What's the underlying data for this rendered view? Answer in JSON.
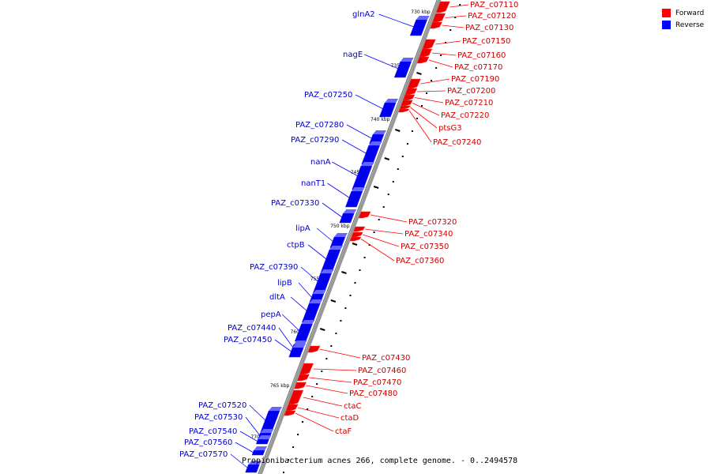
{
  "legend": {
    "forward_label": "Forward",
    "reverse_label": "Reverse",
    "forward_color": "#ff0000",
    "reverse_color": "#0000ff"
  },
  "caption": "Propionibacterium acnes 266, complete genome. - 0..2494578",
  "scale_labels": [
    "730 kbp",
    "735 kbp",
    "740 kbp",
    "745 kbp",
    "750 kbp",
    "755 kbp",
    "760 kbp",
    "765 kbp",
    "770 kbp"
  ],
  "reverse_genes": [
    "glnA2",
    "nagE",
    "PAZ_c07250",
    "PAZ_c07280",
    "PAZ_c07290",
    "nanA",
    "nanT1",
    "PAZ_c07330",
    "lipA",
    "ctpB",
    "PAZ_c07390",
    "lipB",
    "dltA",
    "pepA",
    "PAZ_c07440",
    "PAZ_c07450",
    "PAZ_c07520",
    "PAZ_c07530",
    "PAZ_c07540",
    "PAZ_c07560",
    "PAZ_c07570"
  ],
  "forward_genes": [
    "PAZ_c07110",
    "PAZ_c07120",
    "PAZ_c07130",
    "PAZ_c07150",
    "PAZ_c07160",
    "PAZ_c07170",
    "PAZ_c07190",
    "PAZ_c07200",
    "PAZ_c07210",
    "PAZ_c07220",
    "ptsG3",
    "PAZ_c07240",
    "PAZ_c07320",
    "PAZ_c07340",
    "PAZ_c07350",
    "PAZ_c07360",
    "PAZ_c07430",
    "PAZ_c07460",
    "PAZ_c07470",
    "PAZ_c07480",
    "ctaC",
    "ctaD",
    "ctaF"
  ]
}
